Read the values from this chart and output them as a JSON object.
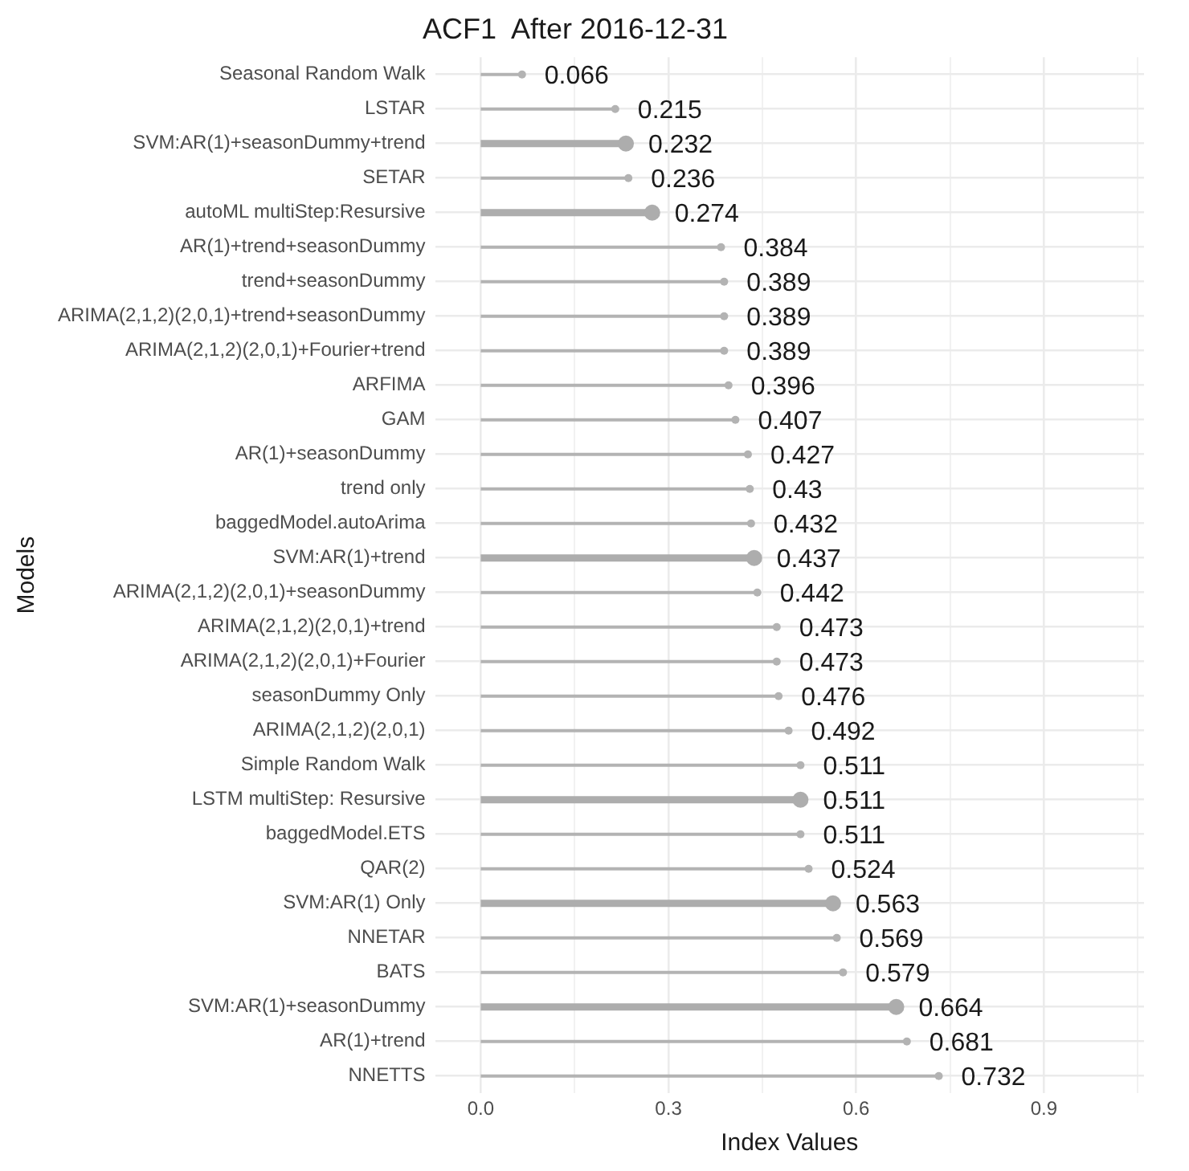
{
  "chart_data": {
    "type": "lollipop",
    "title": "ACF1  After 2016-12-31",
    "xlabel": "Index Values",
    "ylabel": "Models",
    "orientation": "horizontal",
    "categories": [
      "Seasonal Random Walk",
      "LSTAR",
      "SVM:AR(1)+seasonDummy+trend",
      "SETAR",
      "autoML multiStep:Resursive",
      "AR(1)+trend+seasonDummy",
      "trend+seasonDummy",
      "ARIMA(2,1,2)(2,0,1)+trend+seasonDummy",
      "ARIMA(2,1,2)(2,0,1)+Fourier+trend",
      "ARFIMA",
      "GAM",
      "AR(1)+seasonDummy",
      "trend only",
      "baggedModel.autoArima",
      "SVM:AR(1)+trend",
      "ARIMA(2,1,2)(2,0,1)+seasonDummy",
      "ARIMA(2,1,2)(2,0,1)+trend",
      "ARIMA(2,1,2)(2,0,1)+Fourier",
      "seasonDummy Only",
      "ARIMA(2,1,2)(2,0,1)",
      "Simple Random Walk",
      "LSTM multiStep: Resursive",
      "baggedModel.ETS",
      "QAR(2)",
      "SVM:AR(1) Only",
      "NNETAR",
      "BATS",
      "SVM:AR(1)+seasonDummy",
      "AR(1)+trend",
      "NNETTS"
    ],
    "series": [
      {
        "color": "#b3b3b3",
        "values": [
          0.066,
          0.215,
          null,
          0.236,
          null,
          0.384,
          0.389,
          0.389,
          0.389,
          0.396,
          0.407,
          0.427,
          0.43,
          0.432,
          null,
          0.442,
          0.473,
          0.473,
          0.476,
          0.492,
          0.511,
          null,
          0.511,
          0.524,
          null,
          0.569,
          0.579,
          null,
          0.681,
          0.732
        ]
      },
      {
        "color": "#adadad",
        "values": [
          null,
          null,
          0.232,
          null,
          0.274,
          null,
          null,
          null,
          null,
          null,
          null,
          null,
          null,
          null,
          0.437,
          null,
          null,
          null,
          null,
          null,
          null,
          0.511,
          null,
          null,
          0.563,
          null,
          null,
          0.664,
          null,
          null
        ]
      }
    ],
    "xlim": [
      -0.073,
      1.06
    ],
    "xticks": [
      {
        "value": 0,
        "label": "0.0"
      },
      {
        "value": 0.15,
        "label": null
      },
      {
        "value": 0.3,
        "label": "0.3"
      },
      {
        "value": 0.45,
        "label": null
      },
      {
        "value": 0.6,
        "label": "0.6"
      },
      {
        "value": 0.75,
        "label": null
      },
      {
        "value": 0.9,
        "label": "0.9"
      },
      {
        "value": 1.05,
        "label": null
      }
    ],
    "grid": true,
    "marker": "circle",
    "data_labels": true
  }
}
